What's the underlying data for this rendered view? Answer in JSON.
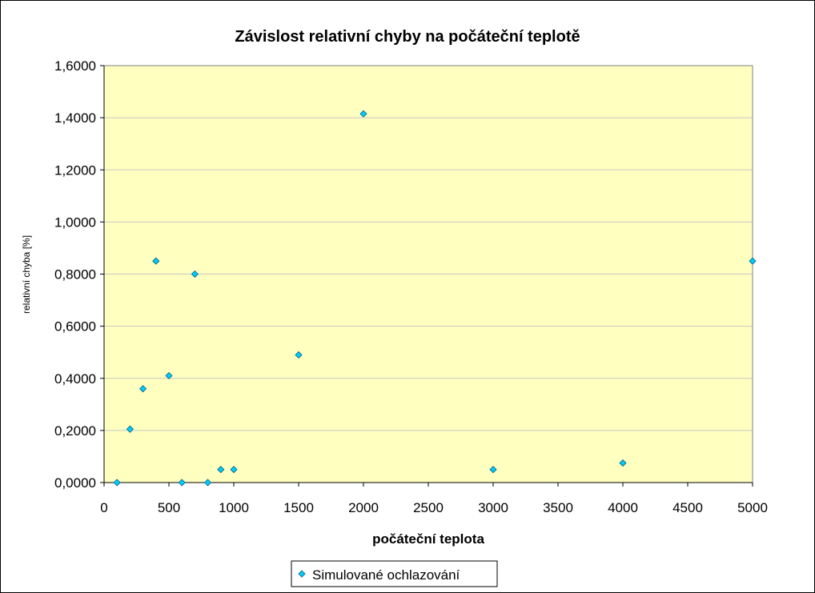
{
  "chart_data": {
    "type": "scatter",
    "title": "Závislost relativní chyby na počáteční teplotě",
    "xlabel": "počáteční teplota",
    "ylabel": "relativní chyba [%]",
    "xlim": [
      0,
      5000
    ],
    "ylim": [
      0,
      1.6
    ],
    "x_ticks": [
      "0",
      "500",
      "1000",
      "1500",
      "2000",
      "2500",
      "3000",
      "3500",
      "4000",
      "4500",
      "5000"
    ],
    "y_ticks": [
      "0,0000",
      "0,2000",
      "0,4000",
      "0,6000",
      "0,8000",
      "1,0000",
      "1,2000",
      "1,4000",
      "1,6000"
    ],
    "grid": "horizontal",
    "legend_position": "bottom",
    "plot_background": "#ffffc0",
    "marker_color": "#00ccff",
    "series": [
      {
        "name": "Simulované ochlazování",
        "x": [
          100,
          200,
          300,
          400,
          500,
          600,
          700,
          800,
          900,
          1000,
          1500,
          2000,
          3000,
          4000,
          5000
        ],
        "y": [
          0.0,
          0.205,
          0.36,
          0.85,
          0.41,
          0.0,
          0.8,
          0.0,
          0.05,
          0.05,
          0.49,
          1.415,
          0.05,
          0.075,
          0.85
        ]
      }
    ]
  }
}
